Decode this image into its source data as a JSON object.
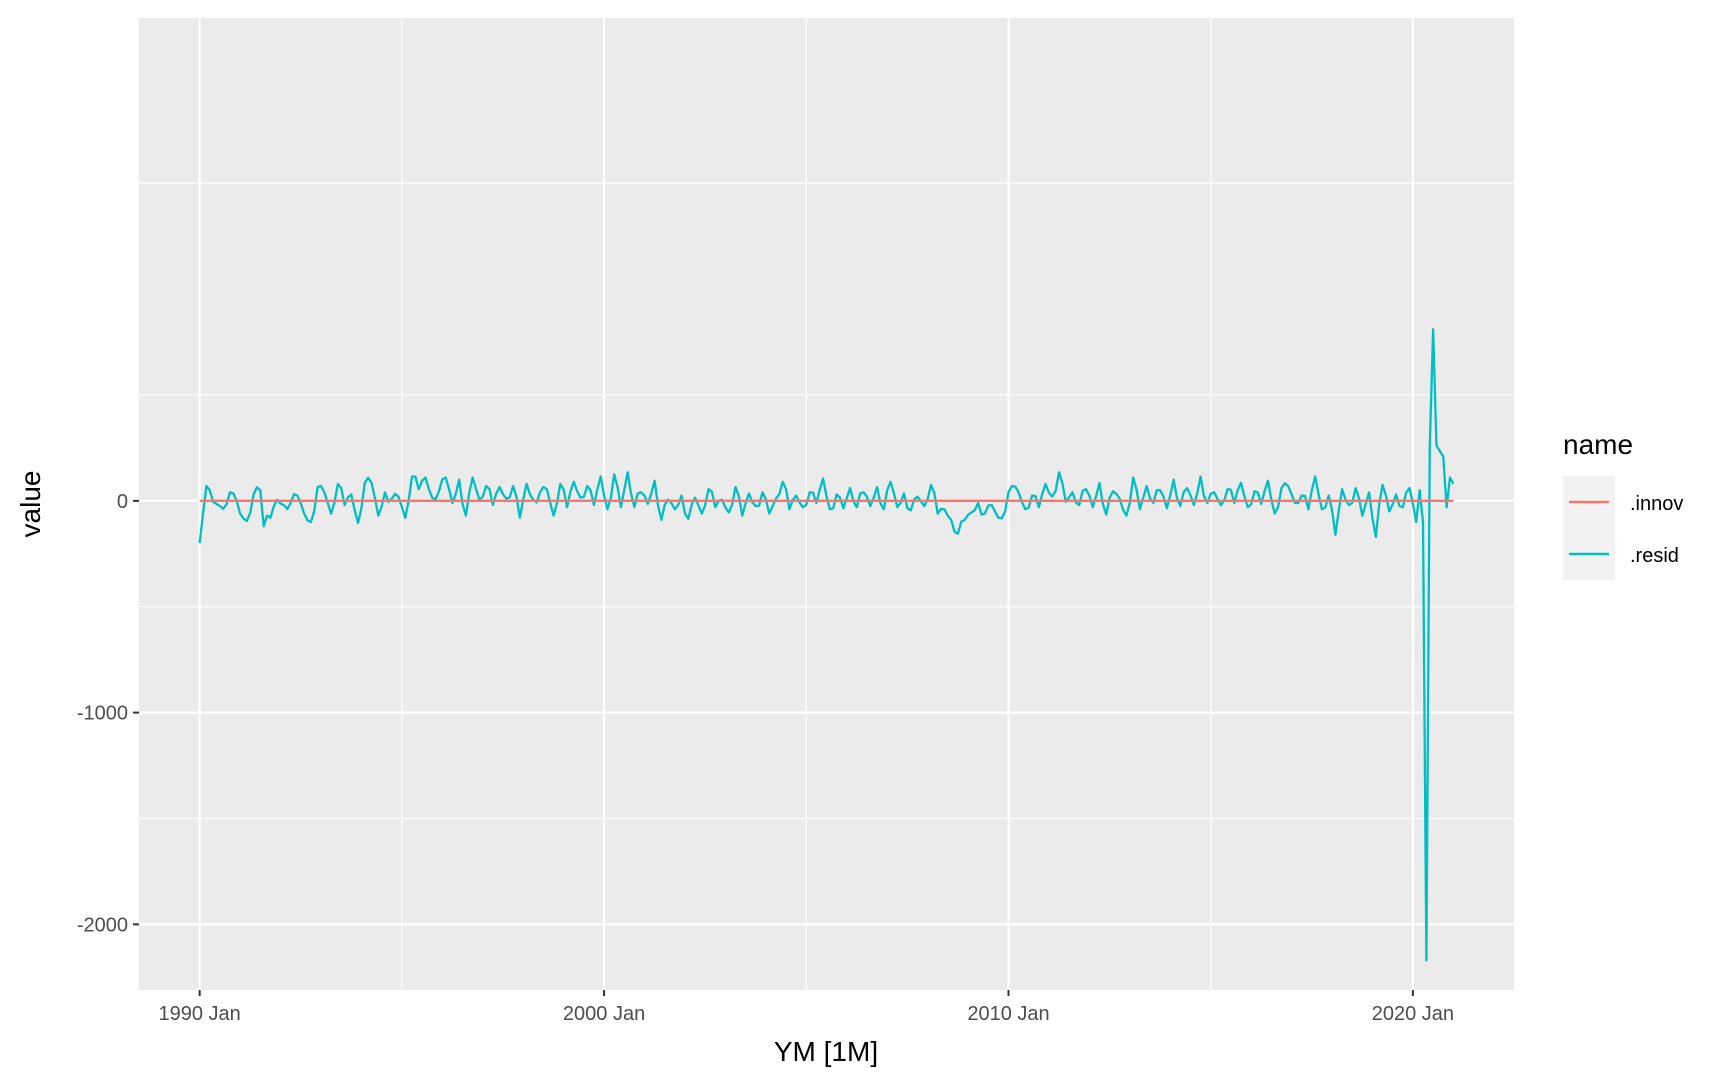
{
  "chart_data": {
    "type": "line",
    "title": "",
    "xlabel": "YM [1M]",
    "ylabel": "value",
    "x_ticks": [
      "1990 Jan",
      "2000 Jan",
      "2010 Jan",
      "2020 Jan"
    ],
    "y_ticks": [
      "-2000",
      "-1000",
      "0"
    ],
    "xlim": [
      "1988 Jul",
      "2022 Jul"
    ],
    "ylim": [
      -2310,
      2280
    ],
    "grid": true,
    "legend": {
      "title": "name",
      "position": "right",
      "entries": [
        {
          "label": ".innov",
          "color": "#F8766D"
        },
        {
          "label": ".resid",
          "color": "#00BFC4"
        }
      ]
    },
    "x_start": "1990 Jan",
    "x_end": "2021 Jan",
    "series": [
      {
        "name": ".innov",
        "color": "#F8766D",
        "points": [
          [
            "1990 Jan",
            0
          ],
          [
            "2021 Jan",
            0
          ]
        ]
      },
      {
        "name": ".resid",
        "color": "#00BFC4",
        "points": [
          [
            "1990 Jan",
            -200
          ],
          [
            "1990 Feb",
            -60
          ],
          [
            "1990 Mar",
            70
          ],
          [
            "1990 May",
            -5
          ],
          [
            "1990 Jul",
            -25
          ],
          [
            "1990 Sep",
            -15
          ],
          [
            "1990 Nov",
            35
          ],
          [
            "1991 Jan",
            -60
          ],
          [
            "1991 Mar",
            -95
          ],
          [
            "1991 May",
            30
          ],
          [
            "1991 Jul",
            50
          ],
          [
            "1991 Aug",
            -120
          ],
          [
            "1991 Oct",
            -80
          ],
          [
            "1991 Dec",
            5
          ],
          [
            "1992 Feb",
            -20
          ],
          [
            "1992 Apr",
            -10
          ],
          [
            "1992 Jun",
            25
          ],
          [
            "1992 Aug",
            -60
          ],
          [
            "1992 Oct",
            -100
          ],
          [
            "1992 Dec",
            65
          ],
          [
            "1993 Feb",
            40
          ],
          [
            "1993 Apr",
            -60
          ],
          [
            "1993 Jun",
            80
          ],
          [
            "1993 Aug",
            -20
          ],
          [
            "1993 Oct",
            30
          ],
          [
            "1993 Dec",
            -105
          ],
          [
            "1994 Feb",
            85
          ],
          [
            "1994 Apr",
            85
          ],
          [
            "1994 Jun",
            -70
          ],
          [
            "1994 Aug",
            40
          ],
          [
            "1994 Oct",
            10
          ],
          [
            "1994 Dec",
            20
          ],
          [
            "1995 Feb",
            -80
          ],
          [
            "1995 Apr",
            115
          ],
          [
            "1995 Jun",
            55
          ],
          [
            "1995 Aug",
            110
          ],
          [
            "1995 Oct",
            15
          ],
          [
            "1995 Dec",
            45
          ],
          [
            "1996 Feb",
            110
          ],
          [
            "1996 Apr",
            -10
          ],
          [
            "1996 Jun",
            100
          ],
          [
            "1996 Aug",
            -70
          ],
          [
            "1996 Oct",
            110
          ],
          [
            "1996 Dec",
            5
          ],
          [
            "1997 Feb",
            70
          ],
          [
            "1997 Apr",
            -20
          ],
          [
            "1997 Jun",
            65
          ],
          [
            "1997 Aug",
            10
          ],
          [
            "1997 Oct",
            70
          ],
          [
            "1997 Dec",
            -80
          ],
          [
            "1998 Feb",
            80
          ],
          [
            "1998 Apr",
            5
          ],
          [
            "1998 Jun",
            40
          ],
          [
            "1998 Aug",
            55
          ],
          [
            "1998 Oct",
            -70
          ],
          [
            "1998 Dec",
            80
          ],
          [
            "1999 Feb",
            -30
          ],
          [
            "1999 Apr",
            90
          ],
          [
            "1999 Jun",
            15
          ],
          [
            "1999 Aug",
            70
          ],
          [
            "1999 Oct",
            -20
          ],
          [
            "1999 Dec",
            115
          ],
          [
            "2000 Feb",
            -40
          ],
          [
            "2000 Apr",
            125
          ],
          [
            "2000 Jun",
            -30
          ],
          [
            "2000 Aug",
            135
          ],
          [
            "2000 Oct",
            -30
          ],
          [
            "2000 Dec",
            40
          ],
          [
            "2001 Feb",
            -15
          ],
          [
            "2001 Apr",
            95
          ],
          [
            "2001 Jun",
            -90
          ],
          [
            "2001 Aug",
            5
          ],
          [
            "2001 Oct",
            -40
          ],
          [
            "2001 Dec",
            25
          ],
          [
            "2002 Feb",
            -85
          ],
          [
            "2002 Apr",
            15
          ],
          [
            "2002 Jun",
            -60
          ],
          [
            "2002 Aug",
            55
          ],
          [
            "2002 Oct",
            -30
          ],
          [
            "2002 Dec",
            5
          ],
          [
            "2003 Feb",
            -55
          ],
          [
            "2003 Apr",
            65
          ],
          [
            "2003 Jun",
            -70
          ],
          [
            "2003 Aug",
            35
          ],
          [
            "2003 Oct",
            -25
          ],
          [
            "2003 Dec",
            40
          ],
          [
            "2004 Feb",
            -60
          ],
          [
            "2004 Apr",
            10
          ],
          [
            "2004 Jun",
            90
          ],
          [
            "2004 Aug",
            -40
          ],
          [
            "2004 Oct",
            25
          ],
          [
            "2004 Dec",
            -30
          ],
          [
            "2005 Feb",
            40
          ],
          [
            "2005 Apr",
            -10
          ],
          [
            "2005 Jun",
            105
          ],
          [
            "2005 Aug",
            -40
          ],
          [
            "2005 Oct",
            30
          ],
          [
            "2005 Dec",
            -35
          ],
          [
            "2006 Feb",
            60
          ],
          [
            "2006 Apr",
            -30
          ],
          [
            "2006 Jun",
            40
          ],
          [
            "2006 Aug",
            -25
          ],
          [
            "2006 Oct",
            65
          ],
          [
            "2006 Dec",
            -40
          ],
          [
            "2007 Feb",
            90
          ],
          [
            "2007 Apr",
            -30
          ],
          [
            "2007 Jun",
            35
          ],
          [
            "2007 Aug",
            -45
          ],
          [
            "2007 Oct",
            20
          ],
          [
            "2007 Dec",
            -25
          ],
          [
            "2008 Feb",
            75
          ],
          [
            "2008 Apr",
            -60
          ],
          [
            "2008 Jun",
            -40
          ],
          [
            "2008 Aug",
            -90
          ],
          [
            "2008 Oct",
            -155
          ],
          [
            "2008 Dec",
            -90
          ],
          [
            "2009 Feb",
            -55
          ],
          [
            "2009 Apr",
            -10
          ],
          [
            "2009 Jun",
            -60
          ],
          [
            "2009 Aug",
            -20
          ],
          [
            "2009 Oct",
            -80
          ],
          [
            "2009 Dec",
            -50
          ],
          [
            "2010 Feb",
            70
          ],
          [
            "2010 Apr",
            40
          ],
          [
            "2010 Jun",
            -40
          ],
          [
            "2010 Aug",
            25
          ],
          [
            "2010 Oct",
            -30
          ],
          [
            "2010 Dec",
            80
          ],
          [
            "2011 Feb",
            20
          ],
          [
            "2011 Apr",
            135
          ],
          [
            "2011 Jun",
            -5
          ],
          [
            "2011 Aug",
            40
          ],
          [
            "2011 Oct",
            -20
          ],
          [
            "2011 Dec",
            55
          ],
          [
            "2012 Feb",
            -30
          ],
          [
            "2012 Apr",
            85
          ],
          [
            "2012 Jun",
            -65
          ],
          [
            "2012 Aug",
            45
          ],
          [
            "2012 Oct",
            10
          ],
          [
            "2012 Dec",
            -70
          ],
          [
            "2013 Feb",
            110
          ],
          [
            "2013 Apr",
            -40
          ],
          [
            "2013 Jun",
            70
          ],
          [
            "2013 Aug",
            -10
          ],
          [
            "2013 Oct",
            50
          ],
          [
            "2013 Dec",
            -35
          ],
          [
            "2014 Feb",
            100
          ],
          [
            "2014 Apr",
            -25
          ],
          [
            "2014 Jun",
            60
          ],
          [
            "2014 Aug",
            -20
          ],
          [
            "2014 Oct",
            115
          ],
          [
            "2014 Dec",
            -10
          ],
          [
            "2015 Feb",
            40
          ],
          [
            "2015 Apr",
            -20
          ],
          [
            "2015 Jun",
            55
          ],
          [
            "2015 Aug",
            -10
          ],
          [
            "2015 Oct",
            85
          ],
          [
            "2015 Dec",
            -30
          ],
          [
            "2016 Feb",
            45
          ],
          [
            "2016 Apr",
            -15
          ],
          [
            "2016 Jun",
            95
          ],
          [
            "2016 Aug",
            -60
          ],
          [
            "2016 Oct",
            60
          ],
          [
            "2016 Dec",
            70
          ],
          [
            "2017 Feb",
            -10
          ],
          [
            "2017 Apr",
            25
          ],
          [
            "2017 Jun",
            -40
          ],
          [
            "2017 Aug",
            115
          ],
          [
            "2017 Oct",
            -40
          ],
          [
            "2017 Dec",
            25
          ],
          [
            "2018 Feb",
            -160
          ],
          [
            "2018 Apr",
            55
          ],
          [
            "2018 Jun",
            -20
          ],
          [
            "2018 Aug",
            60
          ],
          [
            "2018 Oct",
            -70
          ],
          [
            "2018 Dec",
            40
          ],
          [
            "2019 Feb",
            -170
          ],
          [
            "2019 Apr",
            75
          ],
          [
            "2019 Jun",
            -50
          ],
          [
            "2019 Aug",
            30
          ],
          [
            "2019 Oct",
            -30
          ],
          [
            "2019 Dec",
            60
          ],
          [
            "2020 Feb",
            -100
          ],
          [
            "2020 Mar",
            50
          ],
          [
            "2020 Apr",
            -100
          ],
          [
            "2020 May",
            -2170
          ],
          [
            "2020 Jun",
            250
          ],
          [
            "2020 Jul",
            810
          ],
          [
            "2020 Aug",
            260
          ],
          [
            "2020 Oct",
            210
          ],
          [
            "2020 Nov",
            -30
          ],
          [
            "2020 Dec",
            110
          ],
          [
            "2021 Jan",
            80
          ]
        ]
      }
    ]
  }
}
